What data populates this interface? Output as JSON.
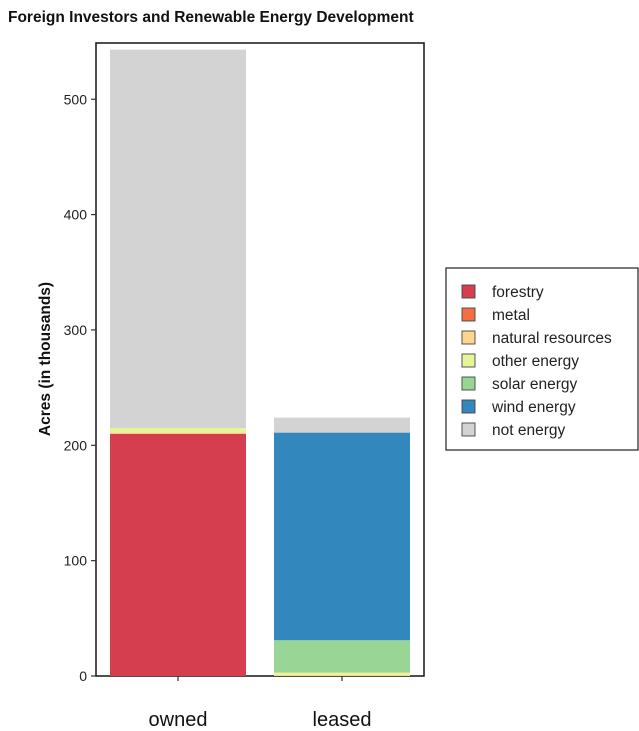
{
  "chart_data": {
    "type": "bar",
    "stacked": true,
    "title": "Foreign Investors and Renewable Energy Development",
    "xlabel": "",
    "ylabel": "Acres (in thousands)",
    "ylim": [
      0,
      550
    ],
    "yticks": [
      0,
      100,
      200,
      300,
      400,
      500
    ],
    "categories": [
      "owned",
      "leased"
    ],
    "series": [
      {
        "name": "forestry",
        "color": "#d53e4f",
        "values": [
          210,
          0
        ]
      },
      {
        "name": "metal",
        "color": "#f46d43",
        "values": [
          0,
          0
        ]
      },
      {
        "name": "natural resources",
        "color": "#fdd58c",
        "values": [
          1,
          1
        ]
      },
      {
        "name": "other energy",
        "color": "#e6f598",
        "values": [
          4,
          2
        ]
      },
      {
        "name": "solar energy",
        "color": "#99d594",
        "values": [
          0,
          28
        ]
      },
      {
        "name": "wind energy",
        "color": "#3288bd",
        "values": [
          0,
          180
        ]
      },
      {
        "name": "not energy",
        "color": "#d3d3d3",
        "values": [
          328,
          13
        ]
      }
    ],
    "legend_position": "right",
    "grid": false
  }
}
